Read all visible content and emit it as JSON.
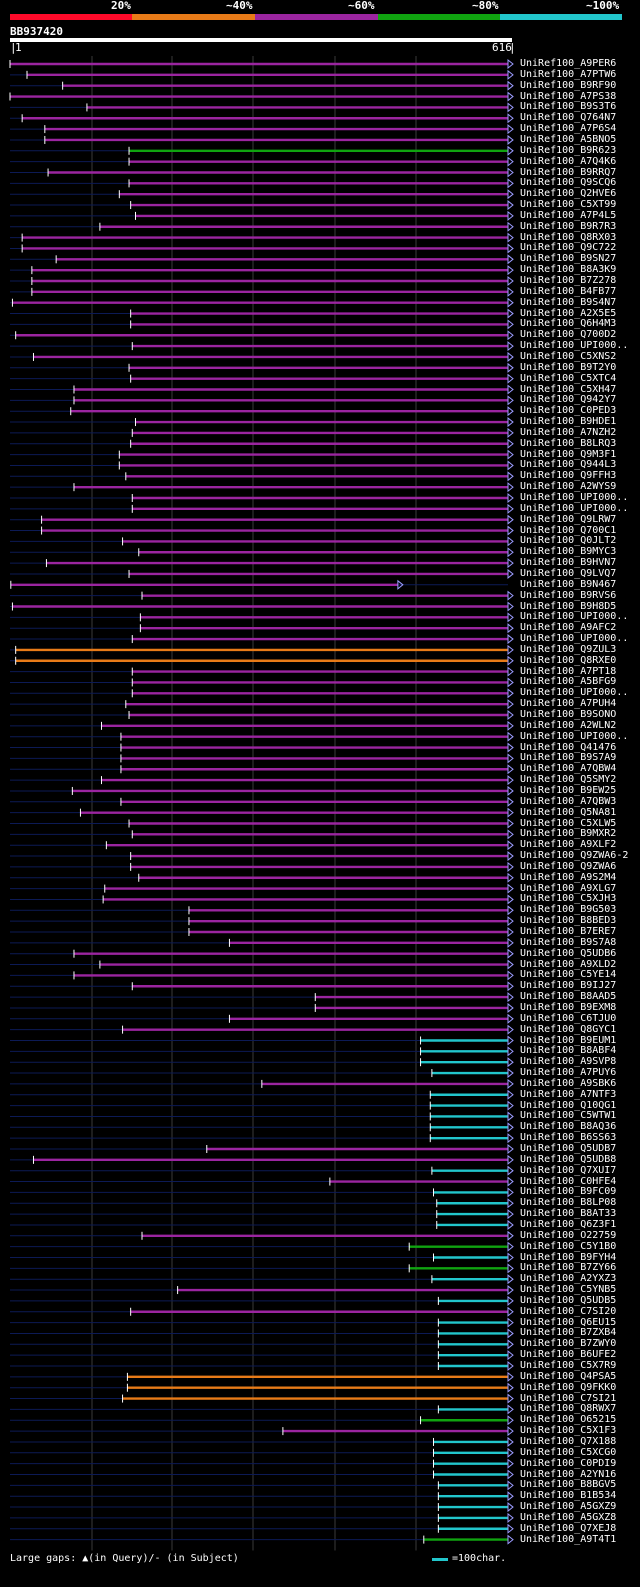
{
  "query": {
    "name": "BB937420",
    "start": "1",
    "end": "616",
    "length": 616
  },
  "legend": {
    "labels": [
      "20%",
      "~40%",
      "~60%",
      "~80%",
      "~100%"
    ],
    "colors": [
      "#ff0a2a",
      "#e87b18",
      "#9b25a0",
      "#10a410",
      "#22c6cc"
    ]
  },
  "footer": {
    "gaps_text": "Large gaps: ▲(in Query)/- (in Subject)",
    "scale_text": "=100char."
  },
  "hits": [
    {
      "name": "UniRef100_A9PER6",
      "s": 1,
      "e": 616,
      "c": "p"
    },
    {
      "name": "UniRef100_A7PTW6",
      "s": 22,
      "e": 616,
      "c": "p"
    },
    {
      "name": "UniRef100_B9RF90",
      "s": 66,
      "e": 616,
      "c": "p"
    },
    {
      "name": "UniRef100_A7PS38",
      "s": 1,
      "e": 616,
      "c": "p"
    },
    {
      "name": "UniRef100_B9S3T6",
      "s": 96,
      "e": 616,
      "c": "p"
    },
    {
      "name": "UniRef100_Q764N7",
      "s": 16,
      "e": 616,
      "c": "p"
    },
    {
      "name": "UniRef100_A7P6S4",
      "s": 44,
      "e": 616,
      "c": "p"
    },
    {
      "name": "UniRef100_A5BNO5",
      "s": 44,
      "e": 616,
      "c": "p"
    },
    {
      "name": "UniRef100_B9R623",
      "s": 148,
      "e": 616,
      "c": "g"
    },
    {
      "name": "UniRef100_A7Q4K6",
      "s": 148,
      "e": 616,
      "c": "p"
    },
    {
      "name": "UniRef100_B9RRQ7",
      "s": 48,
      "e": 616,
      "c": "p"
    },
    {
      "name": "UniRef100_Q9SCQ6",
      "s": 148,
      "e": 616,
      "c": "p"
    },
    {
      "name": "UniRef100_Q2HVE6",
      "s": 136,
      "e": 616,
      "c": "p"
    },
    {
      "name": "UniRef100_C5XT99",
      "s": 150,
      "e": 616,
      "c": "p"
    },
    {
      "name": "UniRef100_A7P4L5",
      "s": 156,
      "e": 616,
      "c": "p"
    },
    {
      "name": "UniRef100_B9R7R3",
      "s": 112,
      "e": 616,
      "c": "p"
    },
    {
      "name": "UniRef100_Q8RX03",
      "s": 16,
      "e": 616,
      "c": "p"
    },
    {
      "name": "UniRef100_Q9C722",
      "s": 16,
      "e": 616,
      "c": "p"
    },
    {
      "name": "UniRef100_B9SN27",
      "s": 58,
      "e": 616,
      "c": "p"
    },
    {
      "name": "UniRef100_B8A3K9",
      "s": 28,
      "e": 616,
      "c": "p"
    },
    {
      "name": "UniRef100_B7Z278",
      "s": 28,
      "e": 616,
      "c": "p"
    },
    {
      "name": "UniRef100_B4FB77",
      "s": 28,
      "e": 616,
      "c": "p"
    },
    {
      "name": "UniRef100_B9S4N7",
      "s": 4,
      "e": 616,
      "c": "p"
    },
    {
      "name": "UniRef100_A2X5E5",
      "s": 150,
      "e": 616,
      "c": "p"
    },
    {
      "name": "UniRef100_Q6H4M3",
      "s": 150,
      "e": 616,
      "c": "p"
    },
    {
      "name": "UniRef100_Q700D2",
      "s": 8,
      "e": 616,
      "c": "p"
    },
    {
      "name": "UniRef100_UPI000..",
      "s": 152,
      "e": 616,
      "c": "p"
    },
    {
      "name": "UniRef100_C5XNS2",
      "s": 30,
      "e": 616,
      "c": "p"
    },
    {
      "name": "UniRef100_B9T2Y0",
      "s": 148,
      "e": 616,
      "c": "p"
    },
    {
      "name": "UniRef100_C5XTC4",
      "s": 150,
      "e": 616,
      "c": "p"
    },
    {
      "name": "UniRef100_C5XH47",
      "s": 80,
      "e": 616,
      "c": "p"
    },
    {
      "name": "UniRef100_Q942Y7",
      "s": 80,
      "e": 616,
      "c": "p"
    },
    {
      "name": "UniRef100_C0PED3",
      "s": 76,
      "e": 616,
      "c": "p"
    },
    {
      "name": "UniRef100_B9HDE1",
      "s": 156,
      "e": 616,
      "c": "p"
    },
    {
      "name": "UniRef100_A7NZH2",
      "s": 152,
      "e": 616,
      "c": "p"
    },
    {
      "name": "UniRef100_B8LRQ3",
      "s": 150,
      "e": 616,
      "c": "p"
    },
    {
      "name": "UniRef100_Q9M3F1",
      "s": 136,
      "e": 616,
      "c": "p"
    },
    {
      "name": "UniRef100_Q944L3",
      "s": 136,
      "e": 616,
      "c": "p"
    },
    {
      "name": "UniRef100_Q9FFH3",
      "s": 144,
      "e": 616,
      "c": "p"
    },
    {
      "name": "UniRef100_A2WYS9",
      "s": 80,
      "e": 616,
      "c": "p"
    },
    {
      "name": "UniRef100_UPI000..",
      "s": 152,
      "e": 616,
      "c": "p"
    },
    {
      "name": "UniRef100_UPI000..",
      "s": 152,
      "e": 616,
      "c": "p"
    },
    {
      "name": "UniRef100_Q9LRW7",
      "s": 40,
      "e": 616,
      "c": "p"
    },
    {
      "name": "UniRef100_Q700C1",
      "s": 40,
      "e": 616,
      "c": "p"
    },
    {
      "name": "UniRef100_Q0JLT2",
      "s": 140,
      "e": 616,
      "c": "p"
    },
    {
      "name": "UniRef100_B9MYC3",
      "s": 160,
      "e": 616,
      "c": "p"
    },
    {
      "name": "UniRef100_B9HVN7",
      "s": 46,
      "e": 616,
      "c": "p"
    },
    {
      "name": "UniRef100_Q9LVQ7",
      "s": 148,
      "e": 616,
      "c": "p"
    },
    {
      "name": "UniRef100_B9N467",
      "s": 2,
      "e": 480,
      "c": "p"
    },
    {
      "name": "UniRef100_B9RVS6",
      "s": 164,
      "e": 616,
      "c": "p"
    },
    {
      "name": "UniRef100_B9H8D5",
      "s": 4,
      "e": 616,
      "c": "p"
    },
    {
      "name": "UniRef100_UPI000..",
      "s": 162,
      "e": 616,
      "c": "p"
    },
    {
      "name": "UniRef100_A9AFC2",
      "s": 162,
      "e": 616,
      "c": "p"
    },
    {
      "name": "UniRef100_UPI000..",
      "s": 152,
      "e": 616,
      "c": "p"
    },
    {
      "name": "UniRef100_Q9ZUL3",
      "s": 8,
      "e": 616,
      "c": "o"
    },
    {
      "name": "UniRef100_Q8RXE0",
      "s": 8,
      "e": 616,
      "c": "o"
    },
    {
      "name": "UniRef100_A7PT18",
      "s": 152,
      "e": 616,
      "c": "p"
    },
    {
      "name": "UniRef100_A5BFG9",
      "s": 152,
      "e": 616,
      "c": "p"
    },
    {
      "name": "UniRef100_UPI000..",
      "s": 152,
      "e": 616,
      "c": "p"
    },
    {
      "name": "UniRef100_A7PUH4",
      "s": 144,
      "e": 616,
      "c": "p"
    },
    {
      "name": "UniRef100_B9SONO",
      "s": 148,
      "e": 616,
      "c": "p"
    },
    {
      "name": "UniRef100_A2WLN2",
      "s": 114,
      "e": 616,
      "c": "p"
    },
    {
      "name": "UniRef100_UPI000..",
      "s": 138,
      "e": 616,
      "c": "p"
    },
    {
      "name": "UniRef100_Q41476",
      "s": 138,
      "e": 616,
      "c": "p"
    },
    {
      "name": "UniRef100_B9S7A9",
      "s": 138,
      "e": 616,
      "c": "p"
    },
    {
      "name": "UniRef100_A7QBW4",
      "s": 138,
      "e": 616,
      "c": "p"
    },
    {
      "name": "UniRef100_Q5SMY2",
      "s": 114,
      "e": 616,
      "c": "p"
    },
    {
      "name": "UniRef100_B9EW25",
      "s": 78,
      "e": 616,
      "c": "p"
    },
    {
      "name": "UniRef100_A7QBW3",
      "s": 138,
      "e": 616,
      "c": "p"
    },
    {
      "name": "UniRef100_Q5NA81",
      "s": 88,
      "e": 616,
      "c": "p"
    },
    {
      "name": "UniRef100_C5XLW5",
      "s": 148,
      "e": 616,
      "c": "p"
    },
    {
      "name": "UniRef100_B9MXR2",
      "s": 152,
      "e": 616,
      "c": "p"
    },
    {
      "name": "UniRef100_A9XLF2",
      "s": 120,
      "e": 616,
      "c": "p"
    },
    {
      "name": "UniRef100_Q9ZWA6-2",
      "s": 150,
      "e": 616,
      "c": "p"
    },
    {
      "name": "UniRef100_Q9ZWA6",
      "s": 150,
      "e": 616,
      "c": "p"
    },
    {
      "name": "UniRef100_A9S2M4",
      "s": 160,
      "e": 616,
      "c": "p"
    },
    {
      "name": "UniRef100_A9XLG7",
      "s": 118,
      "e": 616,
      "c": "p"
    },
    {
      "name": "UniRef100_C5XJH3",
      "s": 116,
      "e": 616,
      "c": "p"
    },
    {
      "name": "UniRef100_B9G503",
      "s": 222,
      "e": 616,
      "c": "p"
    },
    {
      "name": "UniRef100_B8BED3",
      "s": 222,
      "e": 616,
      "c": "p"
    },
    {
      "name": "UniRef100_B7ERE7",
      "s": 222,
      "e": 616,
      "c": "p"
    },
    {
      "name": "UniRef100_B9S7A8",
      "s": 272,
      "e": 616,
      "c": "p"
    },
    {
      "name": "UniRef100_Q5UDB6",
      "s": 80,
      "e": 616,
      "c": "p"
    },
    {
      "name": "UniRef100_A9XLD2",
      "s": 112,
      "e": 616,
      "c": "p"
    },
    {
      "name": "UniRef100_C5YE14",
      "s": 80,
      "e": 616,
      "c": "p"
    },
    {
      "name": "UniRef100_B9IJ27",
      "s": 152,
      "e": 616,
      "c": "p"
    },
    {
      "name": "UniRef100_B8AAD5",
      "s": 378,
      "e": 616,
      "c": "p"
    },
    {
      "name": "UniRef100_B9EXM8",
      "s": 378,
      "e": 616,
      "c": "p"
    },
    {
      "name": "UniRef100_C6TJU0",
      "s": 272,
      "e": 616,
      "c": "p"
    },
    {
      "name": "UniRef100_Q8GYC1",
      "s": 140,
      "e": 616,
      "c": "p"
    },
    {
      "name": "UniRef100_B9EUM1",
      "s": 508,
      "e": 616,
      "c": "c"
    },
    {
      "name": "UniRef100_B8ABF4",
      "s": 508,
      "e": 616,
      "c": "c"
    },
    {
      "name": "UniRef100_A9SVP8",
      "s": 508,
      "e": 616,
      "c": "c"
    },
    {
      "name": "UniRef100_A7PUY6",
      "s": 522,
      "e": 616,
      "c": "c"
    },
    {
      "name": "UniRef100_A9SBK6",
      "s": 312,
      "e": 616,
      "c": "p"
    },
    {
      "name": "UniRef100_A7NTF3",
      "s": 520,
      "e": 616,
      "c": "c"
    },
    {
      "name": "UniRef100_Q10QG1",
      "s": 520,
      "e": 616,
      "c": "c"
    },
    {
      "name": "UniRef100_C5WTW1",
      "s": 520,
      "e": 616,
      "c": "c"
    },
    {
      "name": "UniRef100_B8AQ36",
      "s": 520,
      "e": 616,
      "c": "c"
    },
    {
      "name": "UniRef100_B6SS63",
      "s": 520,
      "e": 616,
      "c": "c"
    },
    {
      "name": "UniRef100_Q5UDB7",
      "s": 244,
      "e": 616,
      "c": "p"
    },
    {
      "name": "UniRef100_Q5UDB8",
      "s": 30,
      "e": 616,
      "c": "p"
    },
    {
      "name": "UniRef100_Q7XUI7",
      "s": 522,
      "e": 616,
      "c": "c"
    },
    {
      "name": "UniRef100_C0HFE4",
      "s": 396,
      "e": 616,
      "c": "p"
    },
    {
      "name": "UniRef100_B9FC09",
      "s": 524,
      "e": 616,
      "c": "c"
    },
    {
      "name": "UniRef100_B8LP08",
      "s": 528,
      "e": 616,
      "c": "c"
    },
    {
      "name": "UniRef100_B8AT33",
      "s": 528,
      "e": 616,
      "c": "c"
    },
    {
      "name": "UniRef100_Q6Z3F1",
      "s": 528,
      "e": 616,
      "c": "c"
    },
    {
      "name": "UniRef100_O22759",
      "s": 164,
      "e": 616,
      "c": "p"
    },
    {
      "name": "UniRef100_C5Y1B0",
      "s": 494,
      "e": 616,
      "c": "g"
    },
    {
      "name": "UniRef100_B9FYH4",
      "s": 524,
      "e": 616,
      "c": "c"
    },
    {
      "name": "UniRef100_B7ZY66",
      "s": 494,
      "e": 616,
      "c": "g"
    },
    {
      "name": "UniRef100_A2YXZ3",
      "s": 522,
      "e": 616,
      "c": "c"
    },
    {
      "name": "UniRef100_C5YNB5",
      "s": 208,
      "e": 616,
      "c": "p"
    },
    {
      "name": "UniRef100_Q5UDB5",
      "s": 530,
      "e": 616,
      "c": "c"
    },
    {
      "name": "UniRef100_C7SI20",
      "s": 150,
      "e": 616,
      "c": "p"
    },
    {
      "name": "UniRef100_Q6EU15",
      "s": 530,
      "e": 616,
      "c": "c"
    },
    {
      "name": "UniRef100_B7ZXB4",
      "s": 530,
      "e": 616,
      "c": "c"
    },
    {
      "name": "UniRef100_B7ZWY0",
      "s": 530,
      "e": 616,
      "c": "c"
    },
    {
      "name": "UniRef100_B6UFE2",
      "s": 530,
      "e": 616,
      "c": "c"
    },
    {
      "name": "UniRef100_C5X7R9",
      "s": 530,
      "e": 616,
      "c": "c"
    },
    {
      "name": "UniRef100_Q4PSA5",
      "s": 146,
      "e": 616,
      "c": "o"
    },
    {
      "name": "UniRef100_Q9FKK0",
      "s": 146,
      "e": 616,
      "c": "o"
    },
    {
      "name": "UniRef100_C7SI21",
      "s": 140,
      "e": 616,
      "c": "o"
    },
    {
      "name": "UniRef100_Q8RWX7",
      "s": 530,
      "e": 616,
      "c": "c"
    },
    {
      "name": "UniRef100_O65215",
      "s": 508,
      "e": 616,
      "c": "g"
    },
    {
      "name": "UniRef100_C5X1F3",
      "s": 338,
      "e": 616,
      "c": "p"
    },
    {
      "name": "UniRef100_Q7X188",
      "s": 524,
      "e": 616,
      "c": "c"
    },
    {
      "name": "UniRef100_C5XCG0",
      "s": 524,
      "e": 616,
      "c": "c"
    },
    {
      "name": "UniRef100_C0PDI9",
      "s": 524,
      "e": 616,
      "c": "c"
    },
    {
      "name": "UniRef100_A2YN16",
      "s": 524,
      "e": 616,
      "c": "c"
    },
    {
      "name": "UniRef100_B8BGV5",
      "s": 530,
      "e": 616,
      "c": "c"
    },
    {
      "name": "UniRef100_B1B534",
      "s": 530,
      "e": 616,
      "c": "c"
    },
    {
      "name": "UniRef100_A5GXZ9",
      "s": 530,
      "e": 616,
      "c": "c"
    },
    {
      "name": "UniRef100_A5GXZ8",
      "s": 530,
      "e": 616,
      "c": "c"
    },
    {
      "name": "UniRef100_Q7XEJ8",
      "s": 530,
      "e": 616,
      "c": "c"
    },
    {
      "name": "UniRef100_A9T4T1",
      "s": 512,
      "e": 616,
      "c": "g"
    }
  ]
}
